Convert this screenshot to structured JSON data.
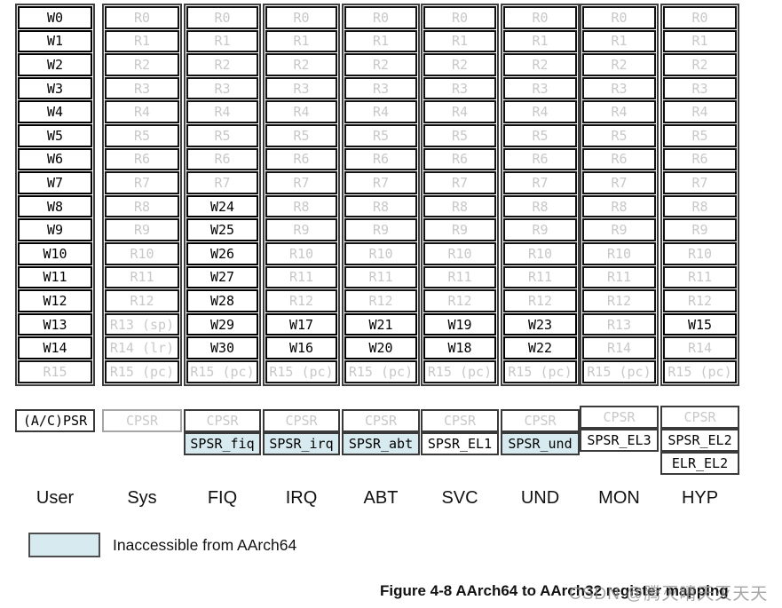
{
  "colors": {
    "inaccessible_fill": "#d7eaf0",
    "gray_text": "#c8c8c8",
    "cell_border": "#000000"
  },
  "columns": [
    {
      "label": "User",
      "cells": [
        [
          "W0",
          false
        ],
        [
          "W1",
          false
        ],
        [
          "W2",
          false
        ],
        [
          "W3",
          false
        ],
        [
          "W4",
          false
        ],
        [
          "W5",
          false
        ],
        [
          "W6",
          false
        ],
        [
          "W7",
          false
        ],
        [
          "W8",
          false
        ],
        [
          "W9",
          false
        ],
        [
          "W10",
          false
        ],
        [
          "W11",
          false
        ],
        [
          "W12",
          false
        ],
        [
          "W13",
          false
        ],
        [
          "W14",
          false
        ],
        [
          "R15",
          true
        ]
      ],
      "psr": [
        {
          "t": "(A/C)PSR",
          "s": "black"
        }
      ]
    },
    {
      "label": "Sys",
      "cells": [
        [
          "R0",
          true
        ],
        [
          "R1",
          true
        ],
        [
          "R2",
          true
        ],
        [
          "R3",
          true
        ],
        [
          "R4",
          true
        ],
        [
          "R5",
          true
        ],
        [
          "R6",
          true
        ],
        [
          "R7",
          true
        ],
        [
          "R8",
          true
        ],
        [
          "R9",
          true
        ],
        [
          "R10",
          true
        ],
        [
          "R11",
          true
        ],
        [
          "R12",
          true
        ],
        [
          "R13 (sp)",
          true
        ],
        [
          "R14 (lr)",
          true
        ],
        [
          "R15 (pc)",
          true
        ]
      ],
      "psr": [
        {
          "t": "CPSR",
          "s": "graylight"
        }
      ]
    },
    {
      "label": "FIQ",
      "cells": [
        [
          "R0",
          true
        ],
        [
          "R1",
          true
        ],
        [
          "R2",
          true
        ],
        [
          "R3",
          true
        ],
        [
          "R4",
          true
        ],
        [
          "R5",
          true
        ],
        [
          "R6",
          true
        ],
        [
          "R7",
          true
        ],
        [
          "W24",
          false
        ],
        [
          "W25",
          false
        ],
        [
          "W26",
          false
        ],
        [
          "W27",
          false
        ],
        [
          "W28",
          false
        ],
        [
          "W29",
          false
        ],
        [
          "W30",
          false
        ],
        [
          "R15 (pc)",
          true
        ]
      ],
      "psr": [
        {
          "t": "CPSR",
          "s": "gray"
        },
        {
          "t": "SPSR_fiq",
          "s": "blue"
        }
      ]
    },
    {
      "label": "IRQ",
      "cells": [
        [
          "R0",
          true
        ],
        [
          "R1",
          true
        ],
        [
          "R2",
          true
        ],
        [
          "R3",
          true
        ],
        [
          "R4",
          true
        ],
        [
          "R5",
          true
        ],
        [
          "R6",
          true
        ],
        [
          "R7",
          true
        ],
        [
          "R8",
          true
        ],
        [
          "R9",
          true
        ],
        [
          "R10",
          true
        ],
        [
          "R11",
          true
        ],
        [
          "R12",
          true
        ],
        [
          "W17",
          false
        ],
        [
          "W16",
          false
        ],
        [
          "R15 (pc)",
          true
        ]
      ],
      "psr": [
        {
          "t": "CPSR",
          "s": "gray"
        },
        {
          "t": "SPSR_irq",
          "s": "blue"
        }
      ]
    },
    {
      "label": "ABT",
      "cells": [
        [
          "R0",
          true
        ],
        [
          "R1",
          true
        ],
        [
          "R2",
          true
        ],
        [
          "R3",
          true
        ],
        [
          "R4",
          true
        ],
        [
          "R5",
          true
        ],
        [
          "R6",
          true
        ],
        [
          "R7",
          true
        ],
        [
          "R8",
          true
        ],
        [
          "R9",
          true
        ],
        [
          "R10",
          true
        ],
        [
          "R11",
          true
        ],
        [
          "R12",
          true
        ],
        [
          "W21",
          false
        ],
        [
          "W20",
          false
        ],
        [
          "R15 (pc)",
          true
        ]
      ],
      "psr": [
        {
          "t": "CPSR",
          "s": "gray"
        },
        {
          "t": "SPSR_abt",
          "s": "blue"
        }
      ]
    },
    {
      "label": "SVC",
      "cells": [
        [
          "R0",
          true
        ],
        [
          "R1",
          true
        ],
        [
          "R2",
          true
        ],
        [
          "R3",
          true
        ],
        [
          "R4",
          true
        ],
        [
          "R5",
          true
        ],
        [
          "R6",
          true
        ],
        [
          "R7",
          true
        ],
        [
          "R8",
          true
        ],
        [
          "R9",
          true
        ],
        [
          "R10",
          true
        ],
        [
          "R11",
          true
        ],
        [
          "R12",
          true
        ],
        [
          "W19",
          false
        ],
        [
          "W18",
          false
        ],
        [
          "R15 (pc)",
          true
        ]
      ],
      "psr": [
        {
          "t": "CPSR",
          "s": "gray"
        },
        {
          "t": "SPSR_EL1",
          "s": "white"
        }
      ]
    },
    {
      "label": "UND",
      "cells": [
        [
          "R0",
          true
        ],
        [
          "R1",
          true
        ],
        [
          "R2",
          true
        ],
        [
          "R3",
          true
        ],
        [
          "R4",
          true
        ],
        [
          "R5",
          true
        ],
        [
          "R6",
          true
        ],
        [
          "R7",
          true
        ],
        [
          "R8",
          true
        ],
        [
          "R9",
          true
        ],
        [
          "R10",
          true
        ],
        [
          "R11",
          true
        ],
        [
          "R12",
          true
        ],
        [
          "W23",
          false
        ],
        [
          "W22",
          false
        ],
        [
          "R15 (pc)",
          true
        ]
      ],
      "psr": [
        {
          "t": "CPSR",
          "s": "gray"
        },
        {
          "t": "SPSR_und",
          "s": "blue"
        }
      ]
    },
    {
      "label": "MON",
      "cells": [
        [
          "R0",
          true
        ],
        [
          "R1",
          true
        ],
        [
          "R2",
          true
        ],
        [
          "R3",
          true
        ],
        [
          "R4",
          true
        ],
        [
          "R5",
          true
        ],
        [
          "R6",
          true
        ],
        [
          "R7",
          true
        ],
        [
          "R8",
          true
        ],
        [
          "R9",
          true
        ],
        [
          "R10",
          true
        ],
        [
          "R11",
          true
        ],
        [
          "R12",
          true
        ],
        [
          "R13",
          true
        ],
        [
          "R14",
          true
        ],
        [
          "R15 (pc)",
          true
        ]
      ],
      "psr": [
        {
          "t": "CPSR",
          "s": "gray"
        },
        {
          "t": "SPSR_EL3",
          "s": "white"
        }
      ]
    },
    {
      "label": "HYP",
      "cells": [
        [
          "R0",
          true
        ],
        [
          "R1",
          true
        ],
        [
          "R2",
          true
        ],
        [
          "R3",
          true
        ],
        [
          "R4",
          true
        ],
        [
          "R5",
          true
        ],
        [
          "R6",
          true
        ],
        [
          "R7",
          true
        ],
        [
          "R8",
          true
        ],
        [
          "R9",
          true
        ],
        [
          "R10",
          true
        ],
        [
          "R11",
          true
        ],
        [
          "R12",
          true
        ],
        [
          "W15",
          false
        ],
        [
          "R14",
          true
        ],
        [
          "R15 (pc)",
          true
        ]
      ],
      "psr": [
        {
          "t": "CPSR",
          "s": "gray"
        },
        {
          "t": "SPSR_EL2",
          "s": "white"
        },
        {
          "t": "ELR_EL2",
          "s": "white"
        }
      ]
    }
  ],
  "legend": {
    "text": "Inaccessible from AArch64"
  },
  "caption": "Figure 4-8  AArch64 to AArch32 register mapping",
  "watermark": "CSDN @腾灭晴天灭天天"
}
